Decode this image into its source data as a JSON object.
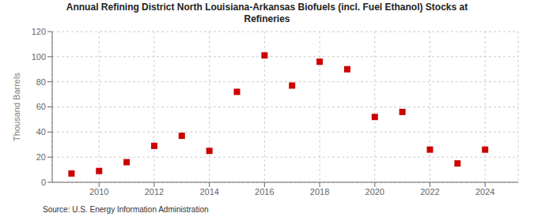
{
  "chart_data": {
    "type": "scatter",
    "title": "Annual Refining District North Louisiana-Arkansas Biofuels (incl. Fuel Ethanol) Stocks at\nRefineries",
    "ylabel": "Thousand Barrels",
    "source": "Source: U.S. Energy Information Administration",
    "x": [
      2009,
      2010,
      2011,
      2012,
      2013,
      2014,
      2015,
      2016,
      2017,
      2018,
      2019,
      2020,
      2021,
      2022,
      2023,
      2024
    ],
    "values": [
      7,
      9,
      16,
      29,
      37,
      25,
      72,
      101,
      77,
      96,
      90,
      52,
      56,
      26,
      15,
      26
    ],
    "color": "#cc0000",
    "marker": "square",
    "xlim": [
      2008.3,
      2025.2
    ],
    "xticks": [
      2010,
      2012,
      2014,
      2016,
      2018,
      2020,
      2022,
      2024
    ],
    "ylim": [
      0,
      120
    ],
    "yticks": [
      0,
      20,
      40,
      60,
      80,
      100,
      120
    ],
    "grid": true
  }
}
